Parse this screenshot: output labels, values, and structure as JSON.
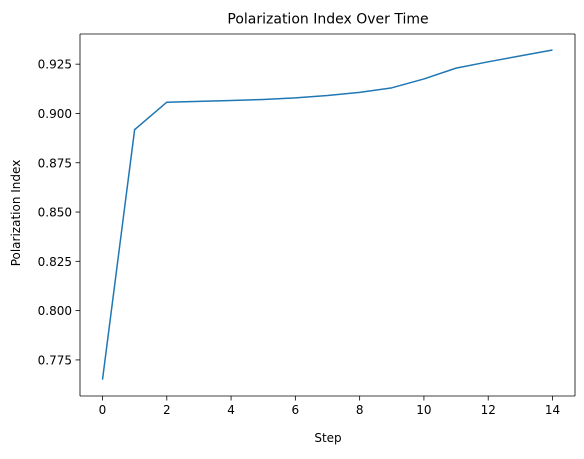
{
  "chart_data": {
    "type": "line",
    "title": "Polarization Index Over Time",
    "xlabel": "Step",
    "ylabel": "Polarization Index",
    "xlim": [
      -0.7,
      14.7
    ],
    "ylim": [
      0.7567,
      0.9403
    ],
    "xticks": [
      0,
      2,
      4,
      6,
      8,
      10,
      12,
      14
    ],
    "xtick_labels": [
      "0",
      "2",
      "4",
      "6",
      "8",
      "10",
      "12",
      "14"
    ],
    "yticks": [
      0.775,
      0.8,
      0.825,
      0.85,
      0.875,
      0.9,
      0.925
    ],
    "ytick_labels": [
      "0.775",
      "0.800",
      "0.825",
      "0.850",
      "0.875",
      "0.900",
      "0.925"
    ],
    "grid": false,
    "legend": "none",
    "series": [
      {
        "color": "#1f77b4",
        "x": [
          0,
          1,
          2,
          3,
          4,
          5,
          6,
          7,
          8,
          9,
          10,
          11,
          12,
          13,
          14
        ],
        "y": [
          0.765,
          0.8918,
          0.9057,
          0.9061,
          0.9066,
          0.9071,
          0.9079,
          0.9091,
          0.9107,
          0.913,
          0.9175,
          0.923,
          0.9262,
          0.9292,
          0.9322
        ]
      }
    ]
  }
}
